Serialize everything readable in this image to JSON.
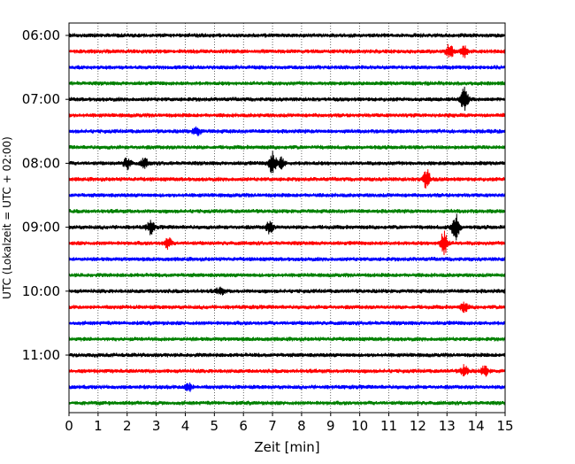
{
  "chart_data": {
    "type": "line",
    "subtype": "helicorder",
    "title": "",
    "xlabel": "Zeit  [min]",
    "ylabel": "UTC (Lokalzeit = UTC + 02:00)",
    "xlim": [
      0,
      15
    ],
    "x_ticks": [
      0,
      1,
      2,
      3,
      4,
      5,
      6,
      7,
      8,
      9,
      10,
      11,
      12,
      13,
      14,
      15
    ],
    "x_tick_labels": [
      "0",
      "1",
      "2",
      "3",
      "4",
      "5",
      "6",
      "7",
      "8",
      "9",
      "10",
      "11",
      "12",
      "13",
      "14",
      "15"
    ],
    "y_tick_labels": [
      "06:00",
      "07:00",
      "08:00",
      "09:00",
      "10:00",
      "11:00"
    ],
    "grid": "vertical dotted lines at each minute",
    "trace_interval_minutes": 15,
    "trace_count": 24,
    "color_cycle": [
      "#000000",
      "#ff0000",
      "#0000ff",
      "#008000"
    ],
    "first_trace": "06:00",
    "events": [
      {
        "trace": 1,
        "minute": 13.1,
        "amplitude": 8
      },
      {
        "trace": 1,
        "minute": 13.6,
        "amplitude": 6
      },
      {
        "trace": 4,
        "minute": 13.6,
        "amplitude": 13
      },
      {
        "trace": 6,
        "minute": 4.4,
        "amplitude": 5
      },
      {
        "trace": 8,
        "minute": 2.0,
        "amplitude": 6
      },
      {
        "trace": 8,
        "minute": 2.6,
        "amplitude": 5
      },
      {
        "trace": 8,
        "minute": 7.0,
        "amplitude": 12
      },
      {
        "trace": 8,
        "minute": 7.3,
        "amplitude": 6
      },
      {
        "trace": 9,
        "minute": 12.3,
        "amplitude": 11
      },
      {
        "trace": 12,
        "minute": 2.8,
        "amplitude": 7
      },
      {
        "trace": 12,
        "minute": 6.9,
        "amplitude": 6
      },
      {
        "trace": 12,
        "minute": 13.3,
        "amplitude": 15
      },
      {
        "trace": 13,
        "minute": 3.4,
        "amplitude": 6
      },
      {
        "trace": 13,
        "minute": 12.9,
        "amplitude": 13
      },
      {
        "trace": 16,
        "minute": 5.2,
        "amplitude": 4
      },
      {
        "trace": 17,
        "minute": 13.6,
        "amplitude": 5
      },
      {
        "trace": 21,
        "minute": 13.6,
        "amplitude": 6
      },
      {
        "trace": 21,
        "minute": 14.3,
        "amplitude": 5
      },
      {
        "trace": 22,
        "minute": 4.1,
        "amplitude": 5
      }
    ]
  }
}
